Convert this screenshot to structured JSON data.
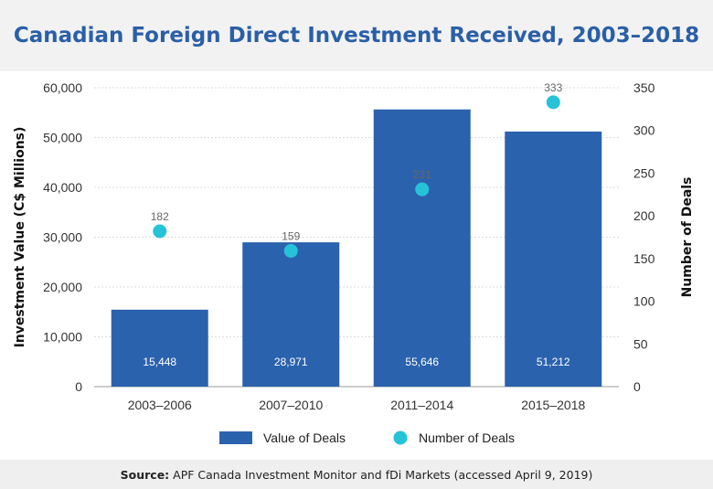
{
  "title": "Canadian Foreign Direct Investment Received, 2003–2018",
  "source_label": "Source:",
  "source_text": "APF Canada Investment Monitor and fDi Markets (accessed April 9, 2019)",
  "colors": {
    "bar": "#2b62ae",
    "dot": "#26c3d8",
    "title": "#2a5fa8",
    "grid": "#dcdcdc"
  },
  "chart_data": {
    "type": "bar",
    "categories": [
      "2003–2006",
      "2007–2010",
      "2011–2014",
      "2015–2018"
    ],
    "series": [
      {
        "name": "Value of Deals",
        "type": "bar",
        "axis": "left",
        "values": [
          15448,
          28971,
          55646,
          51212
        ],
        "labels": [
          "15,448",
          "28,971",
          "55,646",
          "51,212"
        ]
      },
      {
        "name": "Number of Deals",
        "type": "scatter",
        "axis": "right",
        "values": [
          182,
          159,
          231,
          333
        ],
        "labels": [
          "182",
          "159",
          "231",
          "333"
        ]
      }
    ],
    "ylabel": "Investment Value (C$ Millions)",
    "y2label": "Number of Deals",
    "ylim": [
      0,
      60000
    ],
    "y2lim": [
      0,
      350
    ],
    "yticks": [
      "0",
      "10,000",
      "20,000",
      "30,000",
      "40,000",
      "50,000",
      "60,000"
    ],
    "y2ticks": [
      "0",
      "50",
      "100",
      "150",
      "200",
      "250",
      "300",
      "350"
    ],
    "grid": true,
    "legend": "bottom"
  }
}
